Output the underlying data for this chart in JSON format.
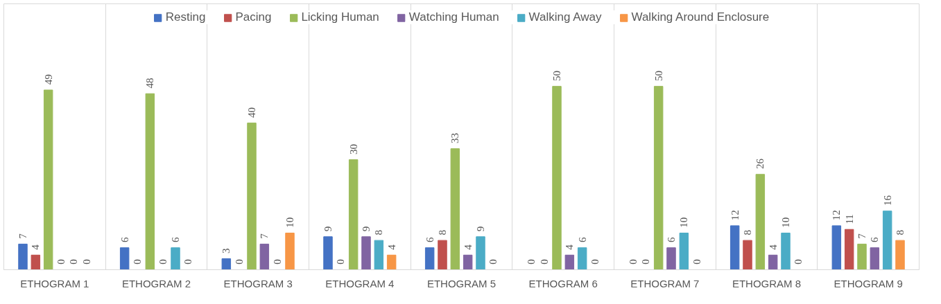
{
  "chart_data": {
    "type": "bar",
    "data_labels": true,
    "legend": "top",
    "categories": [
      "ETHOGRAM 1",
      "ETHOGRAM 2",
      "ETHOGRAM 3",
      "ETHOGRAM 4",
      "ETHOGRAM 5",
      "ETHOGRAM 6",
      "ETHOGRAM 7",
      "ETHOGRAM 8",
      "ETHOGRAM 9"
    ],
    "tick_labels": "x",
    "series": [
      {
        "name": "Resting",
        "color": "#4472c4",
        "values": [
          7,
          6,
          3,
          9,
          6,
          0,
          0,
          12,
          12
        ]
      },
      {
        "name": "Pacing",
        "color": "#c0504d",
        "values": [
          4,
          0,
          0,
          0,
          8,
          0,
          0,
          8,
          11
        ]
      },
      {
        "name": "Licking Human",
        "color": "#9bbb59",
        "values": [
          49,
          48,
          40,
          30,
          33,
          50,
          50,
          26,
          7
        ]
      },
      {
        "name": "Watching Human",
        "color": "#8064a2",
        "values": [
          0,
          0,
          7,
          9,
          4,
          4,
          6,
          4,
          6
        ]
      },
      {
        "name": "Walking Away",
        "color": "#4bacc6",
        "values": [
          0,
          6,
          0,
          8,
          9,
          6,
          10,
          10,
          16
        ]
      },
      {
        "name": "Walking Around Enclosure",
        "color": "#f79646",
        "values": [
          0,
          0,
          10,
          4,
          0,
          0,
          0,
          0,
          8
        ]
      }
    ]
  }
}
